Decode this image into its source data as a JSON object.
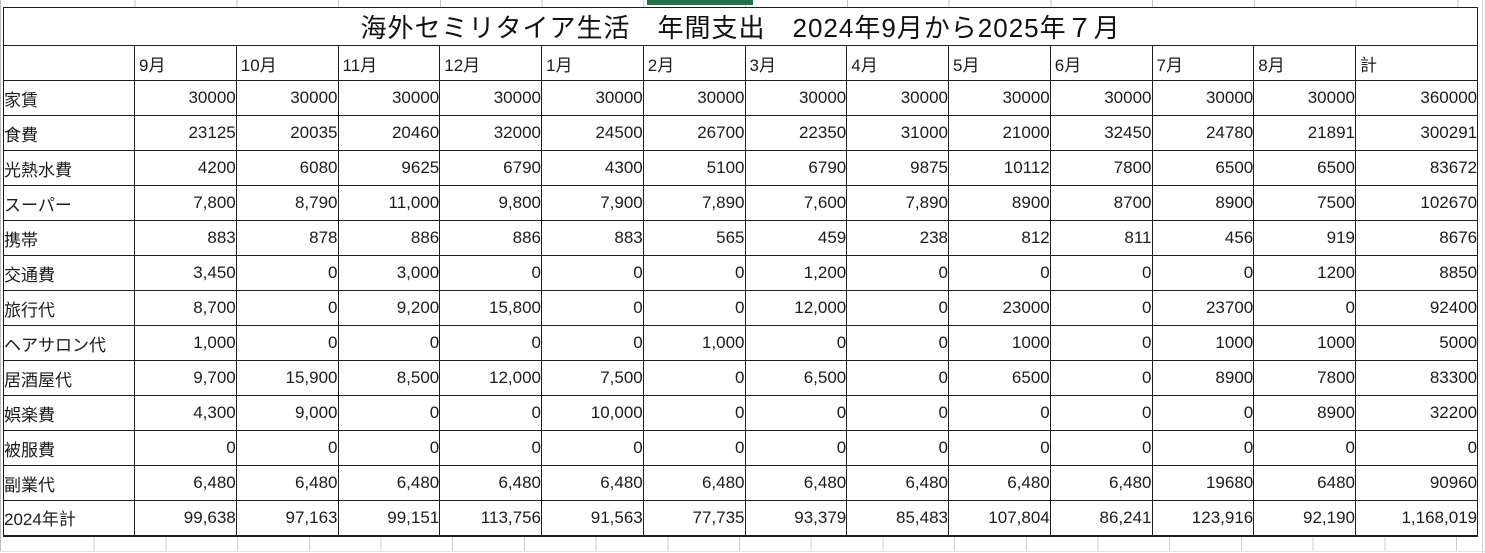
{
  "title": "海外セミリタイア生活　年間支出　2024年9月から2025年７月",
  "selection_indicator_color": "#217346",
  "table": {
    "corner_label": "",
    "columns": [
      "9月",
      "10月",
      "11月",
      "12月",
      "1月",
      "2月",
      "3月",
      "4月",
      "5月",
      "6月",
      "7月",
      "8月",
      "計"
    ],
    "rows": [
      {
        "label": "家賃",
        "values": [
          "30000",
          "30000",
          "30000",
          "30000",
          "30000",
          "30000",
          "30000",
          "30000",
          "30000",
          "30000",
          "30000",
          "30000"
        ],
        "total": "360000"
      },
      {
        "label": "食費",
        "values": [
          "23125",
          "20035",
          "20460",
          "32000",
          "24500",
          "26700",
          "22350",
          "31000",
          "21000",
          "32450",
          "24780",
          "21891"
        ],
        "total": "300291"
      },
      {
        "label": "光熱水費",
        "values": [
          "4200",
          "6080",
          "9625",
          "6790",
          "4300",
          "5100",
          "6790",
          "9875",
          "10112",
          "7800",
          "6500",
          "6500"
        ],
        "total": "83672"
      },
      {
        "label": "スーパー",
        "values": [
          "7,800",
          "8,790",
          "11,000",
          "9,800",
          "7,900",
          "7,890",
          "7,600",
          "7,890",
          "8900",
          "8700",
          "8900",
          "7500"
        ],
        "total": "102670"
      },
      {
        "label": "携帯",
        "values": [
          "883",
          "878",
          "886",
          "886",
          "883",
          "565",
          "459",
          "238",
          "812",
          "811",
          "456",
          "919"
        ],
        "total": "8676"
      },
      {
        "label": "交通費",
        "values": [
          "3,450",
          "0",
          "3,000",
          "0",
          "0",
          "0",
          "1,200",
          "0",
          "0",
          "0",
          "0",
          "1200"
        ],
        "total": "8850"
      },
      {
        "label": "旅行代",
        "values": [
          "8,700",
          "0",
          "9,200",
          "15,800",
          "0",
          "0",
          "12,000",
          "0",
          "23000",
          "0",
          "23700",
          "0"
        ],
        "total": "92400"
      },
      {
        "label": "ヘアサロン代",
        "values": [
          "1,000",
          "0",
          "0",
          "0",
          "0",
          "1,000",
          "0",
          "0",
          "1000",
          "0",
          "1000",
          "1000"
        ],
        "total": "5000"
      },
      {
        "label": "居酒屋代",
        "values": [
          "9,700",
          "15,900",
          "8,500",
          "12,000",
          "7,500",
          "0",
          "6,500",
          "0",
          "6500",
          "0",
          "8900",
          "7800"
        ],
        "total": "83300"
      },
      {
        "label": "娯楽費",
        "values": [
          "4,300",
          "9,000",
          "0",
          "0",
          "10,000",
          "0",
          "0",
          "0",
          "0",
          "0",
          "0",
          "8900"
        ],
        "total": "32200"
      },
      {
        "label": "被服費",
        "values": [
          "0",
          "0",
          "0",
          "0",
          "0",
          "0",
          "0",
          "0",
          "0",
          "0",
          "0",
          "0"
        ],
        "total": "0"
      },
      {
        "label": "副業代",
        "values": [
          "6,480",
          "6,480",
          "6,480",
          "6,480",
          "6,480",
          "6,480",
          "6,480",
          "6,480",
          "6,480",
          "6,480",
          "19680",
          "6480"
        ],
        "total": "90960"
      },
      {
        "label": "2024年計",
        "values": [
          "99,638",
          "97,163",
          "99,151",
          "113,756",
          "91,563",
          "77,735",
          "93,379",
          "85,483",
          "107,804",
          "86,241",
          "123,916",
          "92,190"
        ],
        "total": "1,168,019"
      }
    ]
  }
}
